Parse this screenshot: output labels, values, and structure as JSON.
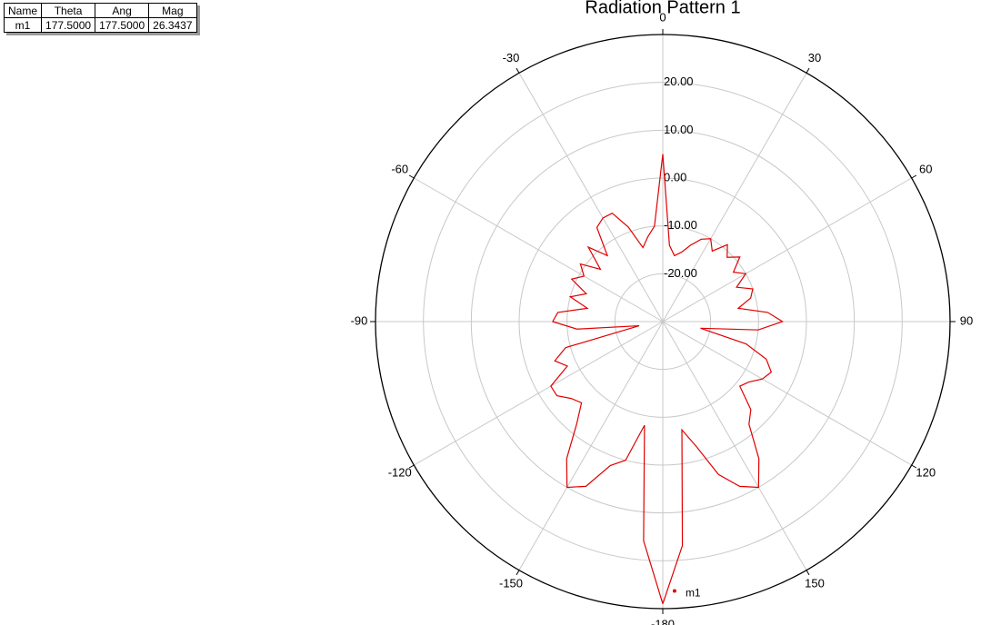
{
  "chart_data": {
    "type": "polar",
    "title": "Radiation Pattern 1",
    "x": [
      -180,
      -175,
      -170,
      -165,
      -160,
      -155,
      -150,
      -145,
      -140,
      -135,
      -130,
      -125,
      -120,
      -115,
      -110,
      -105,
      -100,
      -95,
      -90,
      -85,
      -80,
      -75,
      -70,
      -65,
      -60,
      -55,
      -50,
      -45,
      -40,
      -35,
      -30,
      -25,
      -20,
      -15,
      -10,
      -5,
      0,
      5,
      10,
      15,
      20,
      25,
      30,
      35,
      40,
      45,
      50,
      55,
      60,
      65,
      70,
      75,
      80,
      85,
      90,
      95,
      100,
      105,
      110,
      115,
      120,
      125,
      130,
      135,
      140,
      145,
      150,
      155,
      160,
      165,
      170,
      175,
      180
    ],
    "values": [
      29,
      16,
      -8,
      0,
      2,
      8,
      10,
      5,
      -2,
      -6,
      -5,
      -3,
      -3,
      -8,
      -6,
      -9,
      -25,
      -12,
      -7,
      -8,
      -14,
      -10,
      -13,
      -9,
      -11,
      -9,
      -13,
      -8,
      -12,
      -6,
      -5,
      -5,
      -9,
      -14,
      -12,
      -10,
      5,
      -14,
      -16,
      -15,
      -13,
      -11,
      -10,
      -12,
      -9,
      -11,
      -9,
      -12,
      -10,
      -13,
      -10,
      -11,
      -14,
      -8,
      -5,
      -10,
      -22,
      -12,
      -7,
      -5,
      -6,
      -8,
      -9,
      -4,
      -2,
      5,
      10,
      8,
      4,
      -3,
      -7,
      17,
      29
    ],
    "color": "#e00000",
    "xlim": [
      -180,
      180
    ],
    "xticks": [
      -150,
      -120,
      -90,
      -60,
      -30,
      0,
      30,
      60,
      90,
      120,
      150,
      -180
    ],
    "ylim": [
      -30,
      30
    ],
    "yticks": [
      {
        "value": -20,
        "label": "-20.00"
      },
      {
        "value": -10,
        "label": "-10.00"
      },
      {
        "value": 0,
        "label": "0.00"
      },
      {
        "value": 10,
        "label": "10.00"
      },
      {
        "value": 20,
        "label": "20.00"
      }
    ],
    "grid": true,
    "markers": [
      {
        "name": "m1",
        "theta": 177.5,
        "value": 26.3437
      }
    ]
  },
  "marker_table": {
    "columns": [
      "Name",
      "Theta",
      "Ang",
      "Mag"
    ],
    "rows": [
      [
        "m1",
        "177.5000",
        "177.5000",
        "26.3437"
      ]
    ]
  }
}
